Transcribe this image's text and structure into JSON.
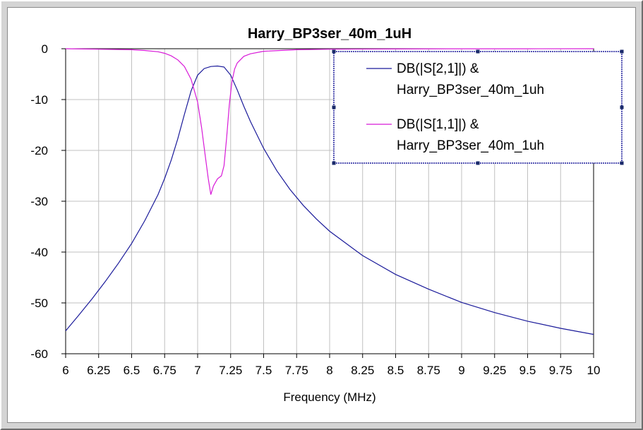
{
  "chart_data": {
    "type": "line",
    "title": "Harry_BP3ser_40m_1uH",
    "xlabel": "Frequency (MHz)",
    "ylabel": "",
    "xlim": [
      6,
      10
    ],
    "ylim": [
      -60,
      0
    ],
    "xticks": [
      6,
      6.25,
      6.5,
      6.75,
      7,
      7.25,
      7.5,
      7.75,
      8,
      8.25,
      8.5,
      8.75,
      9,
      9.25,
      9.5,
      9.75,
      10
    ],
    "xtick_labels": [
      "6",
      "6.25",
      "6.5",
      "6.75",
      "7",
      "7.25",
      "7.5",
      "7.75",
      "8",
      "8.25",
      "8.5",
      "8.75",
      "9",
      "9.25",
      "9.5",
      "9.75",
      "10"
    ],
    "yticks": [
      0,
      -10,
      -20,
      -30,
      -40,
      -50,
      -60
    ],
    "ytick_labels": [
      "0",
      "-10",
      "-20",
      "-30",
      "-40",
      "-50",
      "-60"
    ],
    "grid": true,
    "legend_position": "top-right",
    "series": [
      {
        "name": "DB(|S[2,1]|) & Harry_BP3ser_40m_1uh",
        "legend_lines": [
          "DB(|S[2,1]|) &",
          "Harry_BP3ser_40m_1uh"
        ],
        "color": "#1a1a9a",
        "x": [
          6,
          6.1,
          6.2,
          6.3,
          6.4,
          6.5,
          6.6,
          6.7,
          6.75,
          6.8,
          6.85,
          6.9,
          6.95,
          7.0,
          7.05,
          7.1,
          7.15,
          7.2,
          7.25,
          7.3,
          7.35,
          7.4,
          7.5,
          7.6,
          7.7,
          7.8,
          7.9,
          8.0,
          8.25,
          8.5,
          8.75,
          9.0,
          9.25,
          9.5,
          9.75,
          10
        ],
        "y": [
          -55.5,
          -52.4,
          -49.2,
          -45.8,
          -42.2,
          -38.3,
          -33.8,
          -28.7,
          -25.5,
          -21.9,
          -17.7,
          -12.9,
          -8.3,
          -5.2,
          -3.9,
          -3.5,
          -3.4,
          -3.6,
          -5.2,
          -8.1,
          -11.3,
          -14.3,
          -19.6,
          -24.0,
          -27.7,
          -30.8,
          -33.5,
          -35.9,
          -40.7,
          -44.4,
          -47.3,
          -49.9,
          -51.9,
          -53.6,
          -55.0,
          -56.2
        ]
      },
      {
        "name": "DB(|S[1,1]|) & Harry_BP3ser_40m_1uh",
        "legend_lines": [
          "DB(|S[1,1]|) &",
          "Harry_BP3ser_40m_1uh"
        ],
        "color": "#d81ad8",
        "x": [
          6,
          6.25,
          6.5,
          6.6,
          6.7,
          6.75,
          6.8,
          6.85,
          6.9,
          6.95,
          7.0,
          7.03,
          7.06,
          7.08,
          7.1,
          7.12,
          7.15,
          7.18,
          7.2,
          7.22,
          7.24,
          7.26,
          7.28,
          7.3,
          7.35,
          7.4,
          7.5,
          7.75,
          8.0,
          8.5,
          9.0,
          9.5,
          10
        ],
        "y": [
          0,
          -0.1,
          -0.2,
          -0.35,
          -0.6,
          -0.9,
          -1.4,
          -2.2,
          -3.5,
          -6.0,
          -10.5,
          -15.5,
          -21.5,
          -25.5,
          -28.7,
          -27.0,
          -25.6,
          -25.0,
          -23.0,
          -17.5,
          -11.0,
          -6.5,
          -4.0,
          -2.8,
          -1.5,
          -1.0,
          -0.5,
          -0.2,
          -0.1,
          -0.05,
          -0.02,
          -0.01,
          0
        ]
      }
    ]
  }
}
